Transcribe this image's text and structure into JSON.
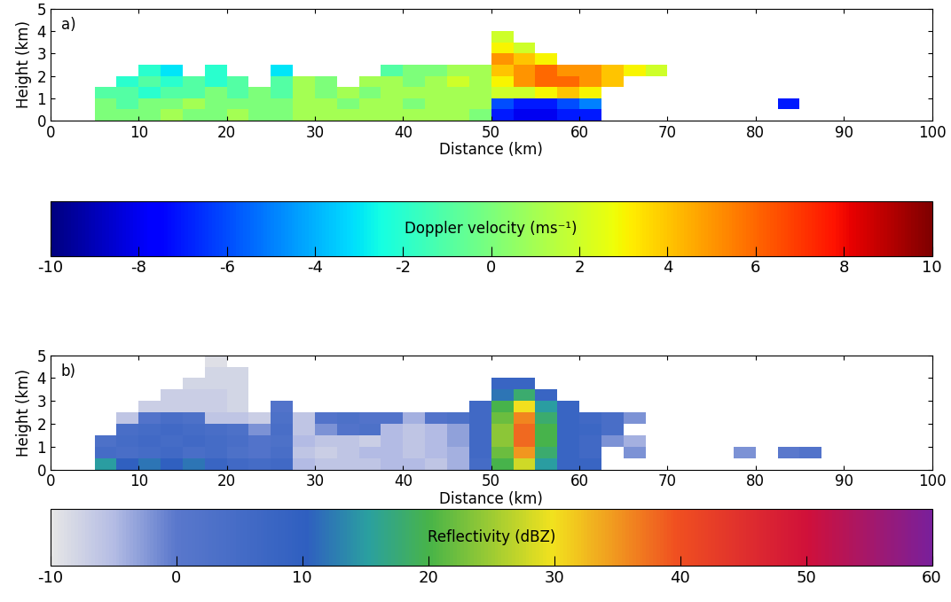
{
  "chart_data": [
    {
      "type": "heatmap",
      "title": "a)",
      "xlabel": "Distance (km)",
      "ylabel": "Height (km)",
      "xlim": [
        0,
        100
      ],
      "ylim": [
        0,
        5
      ],
      "xticks": [
        0,
        10,
        20,
        30,
        40,
        50,
        60,
        70,
        80,
        90,
        100
      ],
      "yticks": [
        0,
        1,
        2,
        3,
        4,
        5
      ],
      "x_bins": [
        0,
        2.5,
        5,
        7.5,
        10,
        12.5,
        15,
        17.5,
        20,
        22.5,
        25,
        27.5,
        30,
        32.5,
        35,
        37.5,
        40,
        42.5,
        45,
        47.5,
        50,
        52.5,
        55,
        57.5,
        60,
        62.5,
        65,
        67.5,
        70,
        72.5,
        75,
        77.5,
        80,
        82.5,
        85,
        87.5,
        90,
        92.5,
        95,
        97.5,
        100
      ],
      "y_bins": [
        0,
        0.5,
        1,
        1.5,
        2,
        2.5,
        3,
        3.5,
        4,
        4.5,
        5
      ],
      "cells": [
        [
          null,
          null,
          0,
          0,
          0,
          1,
          0,
          0,
          1,
          0,
          0,
          1,
          1,
          1,
          1,
          1,
          1,
          1,
          1,
          0,
          -7,
          -8,
          -8,
          -7,
          -7,
          null,
          null,
          null,
          null,
          null,
          null,
          null,
          null,
          null,
          null,
          null,
          null,
          null,
          null,
          null
        ],
        [
          null,
          null,
          0,
          -1,
          0,
          0,
          1,
          0,
          0,
          0,
          0,
          1,
          1,
          0,
          1,
          1,
          0,
          1,
          1,
          1,
          -6,
          -7,
          -7,
          -6,
          -5,
          null,
          null,
          null,
          null,
          null,
          null,
          null,
          null,
          -7,
          null,
          null,
          null,
          null,
          null,
          null
        ],
        [
          null,
          null,
          -1,
          -1,
          -2,
          -1,
          -1,
          0,
          -1,
          0,
          -1,
          1,
          0,
          1,
          0,
          1,
          1,
          1,
          1,
          1,
          2,
          2,
          3,
          4,
          3,
          null,
          null,
          null,
          null,
          null,
          null,
          null,
          null,
          null,
          null,
          null,
          null,
          null,
          null,
          null
        ],
        [
          null,
          null,
          null,
          -2,
          -1,
          -2,
          -1,
          -2,
          -1,
          null,
          -1,
          1,
          0,
          null,
          1,
          1,
          0,
          1,
          2,
          1,
          3,
          5,
          6,
          6,
          5,
          4,
          null,
          null,
          null,
          null,
          null,
          null,
          null,
          null,
          null,
          null,
          null,
          null,
          null,
          null
        ],
        [
          null,
          null,
          null,
          null,
          -2,
          -3,
          null,
          -2,
          null,
          null,
          -3,
          null,
          null,
          null,
          null,
          -1,
          0,
          0,
          1,
          1,
          4,
          5,
          6,
          5,
          5,
          4,
          3,
          2,
          null,
          null,
          null,
          null,
          null,
          null,
          null,
          null,
          null,
          null,
          null,
          null
        ],
        [
          null,
          null,
          null,
          null,
          null,
          null,
          null,
          null,
          null,
          null,
          null,
          null,
          null,
          null,
          null,
          null,
          null,
          null,
          null,
          null,
          5,
          4,
          3,
          null,
          null,
          null,
          null,
          null,
          null,
          null,
          null,
          null,
          null,
          null,
          null,
          null,
          null,
          null,
          null,
          null
        ],
        [
          null,
          null,
          null,
          null,
          null,
          null,
          null,
          null,
          null,
          null,
          null,
          null,
          null,
          null,
          null,
          null,
          null,
          null,
          null,
          null,
          3,
          2,
          null,
          null,
          null,
          null,
          null,
          null,
          null,
          null,
          null,
          null,
          null,
          null,
          null,
          null,
          null,
          null,
          null,
          null
        ],
        [
          null,
          null,
          null,
          null,
          null,
          null,
          null,
          null,
          null,
          null,
          null,
          null,
          null,
          null,
          null,
          null,
          null,
          null,
          null,
          null,
          2,
          null,
          null,
          null,
          null,
          null,
          null,
          null,
          null,
          null,
          null,
          null,
          null,
          null,
          null,
          null,
          null,
          null,
          null,
          null
        ],
        [
          null,
          null,
          null,
          null,
          null,
          null,
          null,
          null,
          null,
          null,
          null,
          null,
          null,
          null,
          null,
          null,
          null,
          null,
          null,
          null,
          null,
          null,
          null,
          null,
          null,
          null,
          null,
          null,
          null,
          null,
          null,
          null,
          null,
          null,
          null,
          null,
          null,
          null,
          null,
          null
        ],
        [
          null,
          null,
          null,
          null,
          null,
          null,
          null,
          null,
          null,
          null,
          null,
          null,
          null,
          null,
          null,
          null,
          null,
          null,
          null,
          null,
          null,
          null,
          null,
          null,
          null,
          null,
          null,
          null,
          null,
          null,
          null,
          null,
          null,
          null,
          null,
          null,
          null,
          null,
          null,
          null
        ]
      ],
      "colorbar": {
        "label": "Doppler velocity (ms⁻¹)",
        "range": [
          -10,
          10
        ],
        "ticks": [
          -10,
          -8,
          -6,
          -4,
          -2,
          0,
          2,
          4,
          6,
          8,
          10
        ]
      }
    },
    {
      "type": "heatmap",
      "title": "b)",
      "xlabel": "Distance (km)",
      "ylabel": "Height (km)",
      "xlim": [
        0,
        100
      ],
      "ylim": [
        0,
        5
      ],
      "xticks": [
        0,
        10,
        20,
        30,
        40,
        50,
        60,
        70,
        80,
        90,
        100
      ],
      "yticks": [
        0,
        1,
        2,
        3,
        4,
        5
      ],
      "x_bins": [
        0,
        2.5,
        5,
        7.5,
        10,
        12.5,
        15,
        17.5,
        20,
        22.5,
        25,
        27.5,
        30,
        32.5,
        35,
        37.5,
        40,
        42.5,
        45,
        47.5,
        50,
        52.5,
        55,
        57.5,
        60,
        62.5,
        65,
        67.5,
        70,
        72.5,
        75,
        77.5,
        80,
        82.5,
        85,
        87.5,
        90,
        92.5,
        95,
        97.5,
        100
      ],
      "y_bins": [
        0,
        0.5,
        1,
        1.5,
        2,
        2.5,
        3,
        3.5,
        4,
        4.5,
        5
      ],
      "cells": [
        [
          null,
          null,
          15,
          10,
          12,
          10,
          12,
          8,
          6,
          5,
          6,
          -5,
          -6,
          -6,
          -6,
          -5,
          -5,
          -6,
          -4,
          5,
          20,
          28,
          15,
          8,
          8,
          null,
          null,
          null,
          null,
          null,
          null,
          null,
          null,
          null,
          null,
          null,
          null,
          null,
          null,
          null
        ],
        [
          null,
          null,
          5,
          4,
          5,
          6,
          4,
          5,
          3,
          2,
          4,
          -6,
          -7,
          -6,
          -5,
          -5,
          -6,
          -5,
          -4,
          6,
          22,
          35,
          18,
          8,
          6,
          null,
          -2,
          null,
          null,
          null,
          null,
          -2,
          null,
          0,
          2,
          null,
          null,
          null,
          null,
          null
        ],
        [
          null,
          null,
          3,
          5,
          6,
          5,
          6,
          5,
          4,
          2,
          3,
          -5,
          -6,
          -6,
          -7,
          -5,
          -6,
          -5,
          -3,
          6,
          24,
          38,
          20,
          8,
          6,
          -2,
          -4,
          null,
          null,
          null,
          null,
          null,
          null,
          null,
          null,
          null,
          null,
          null,
          null,
          null
        ],
        [
          null,
          null,
          null,
          4,
          5,
          6,
          5,
          4,
          3,
          -2,
          4,
          -6,
          -2,
          2,
          3,
          -5,
          -6,
          -5,
          -3,
          6,
          24,
          38,
          20,
          8,
          7,
          4,
          null,
          null,
          null,
          null,
          null,
          null,
          null,
          null,
          null,
          null,
          null,
          null,
          null,
          null
        ],
        [
          null,
          null,
          null,
          -6,
          2,
          4,
          3,
          -6,
          -6,
          -7,
          3,
          -6,
          2,
          3,
          2,
          2,
          -4,
          2,
          3,
          6,
          22,
          36,
          18,
          8,
          6,
          4,
          -2,
          null,
          null,
          null,
          null,
          null,
          null,
          null,
          null,
          null,
          null,
          null,
          null,
          null
        ],
        [
          null,
          null,
          null,
          null,
          -7,
          -7,
          -7,
          -7,
          -8,
          null,
          2,
          null,
          null,
          null,
          null,
          null,
          null,
          null,
          null,
          6,
          20,
          30,
          15,
          8,
          null,
          null,
          null,
          null,
          null,
          null,
          null,
          null,
          null,
          null,
          null,
          null,
          null,
          null,
          null,
          null
        ],
        [
          null,
          null,
          null,
          null,
          null,
          -7,
          -7,
          -7,
          -8,
          null,
          null,
          null,
          null,
          null,
          null,
          null,
          null,
          null,
          null,
          null,
          12,
          18,
          8,
          null,
          null,
          null,
          null,
          null,
          null,
          null,
          null,
          null,
          null,
          null,
          null,
          null,
          null,
          null,
          null,
          null
        ],
        [
          null,
          null,
          null,
          null,
          null,
          null,
          -8,
          -8,
          -8,
          null,
          null,
          null,
          null,
          null,
          null,
          null,
          null,
          null,
          null,
          null,
          8,
          8,
          null,
          null,
          null,
          null,
          null,
          null,
          null,
          null,
          null,
          null,
          null,
          null,
          null,
          null,
          null,
          null,
          null,
          null
        ],
        [
          null,
          null,
          null,
          null,
          null,
          null,
          null,
          -8,
          -8,
          null,
          null,
          null,
          null,
          null,
          null,
          null,
          null,
          null,
          null,
          null,
          null,
          null,
          null,
          null,
          null,
          null,
          null,
          null,
          null,
          null,
          null,
          null,
          null,
          null,
          null,
          null,
          null,
          null,
          null,
          null
        ],
        [
          null,
          null,
          null,
          null,
          null,
          null,
          null,
          -9,
          null,
          null,
          null,
          null,
          null,
          null,
          null,
          null,
          null,
          null,
          null,
          null,
          null,
          null,
          null,
          null,
          null,
          null,
          null,
          null,
          null,
          null,
          null,
          null,
          null,
          null,
          null,
          null,
          null,
          null,
          null,
          null
        ]
      ],
      "colorbar": {
        "label": "Reflectivity (dBZ)",
        "range": [
          -10,
          60
        ],
        "ticks": [
          -10,
          0,
          10,
          20,
          30,
          40,
          50,
          60
        ]
      }
    }
  ]
}
